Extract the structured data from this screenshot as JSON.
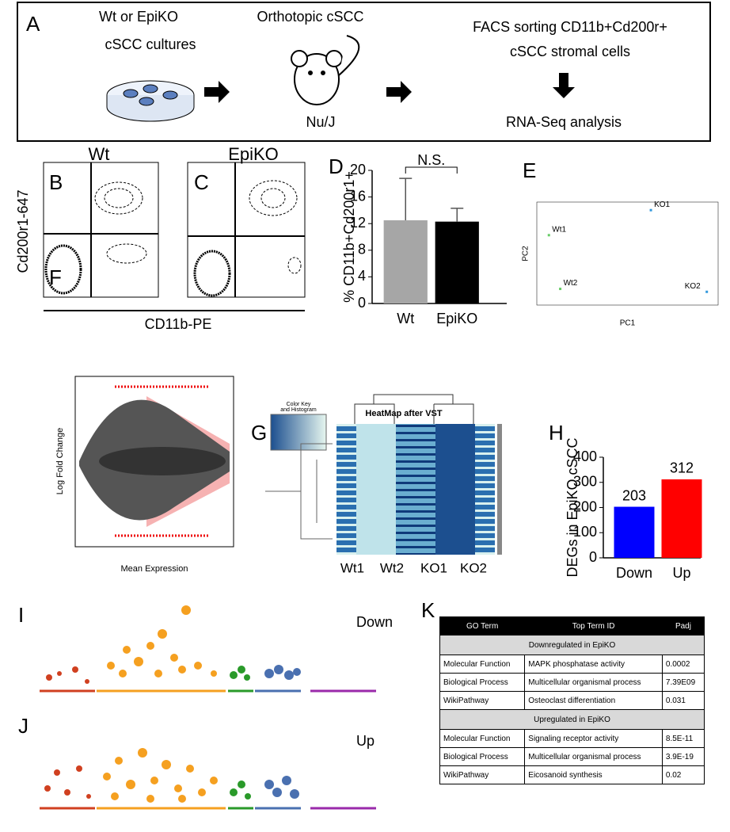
{
  "panel_labels": [
    "A",
    "B",
    "C",
    "D",
    "E",
    "F",
    "G",
    "H",
    "I",
    "J",
    "K"
  ],
  "schematic": {
    "step1": [
      "Wt or EpiKO",
      "cSCC cultures"
    ],
    "step2": "Orthotopic cSCC",
    "mouse": "Nu/J",
    "step3": [
      "FACS sorting CD11b+Cd200r+",
      "cSCC stromal cells"
    ],
    "step4": "RNA-Seq analysis"
  },
  "flow": {
    "titles": [
      "Wt",
      "EpiKO"
    ],
    "ylabel": "Cd200r1-647",
    "xlabel": "CD11b-PE"
  },
  "chart_data": [
    {
      "type": "bar",
      "ylabel": "% CD11b+Cd200r1+",
      "categories": [
        "Wt",
        "EpiKO"
      ],
      "values": [
        12.5,
        12.3
      ],
      "errors": [
        6.3,
        2.0
      ],
      "colors": [
        "#a6a6a6",
        "#000000"
      ],
      "ylim": [
        0,
        20
      ],
      "yticks": [
        0,
        4,
        8,
        12,
        16,
        20
      ],
      "annotation": "N.S."
    },
    {
      "type": "scatter",
      "xlabel": "PC1",
      "ylabel": "PC2",
      "labels": [
        "Wt1",
        "Wt2",
        "KO1",
        "KO2"
      ],
      "x": [
        -10.4,
        -8.9,
        3.1,
        10.5
      ],
      "y": [
        2.5,
        -4.8,
        5.9,
        -5.2
      ],
      "colors": [
        "#66cc66",
        "#66cc66",
        "#3399dd",
        "#3399dd"
      ],
      "xlim": [
        -12,
        12
      ],
      "ylim": [
        -7,
        7
      ]
    },
    {
      "type": "bar",
      "ylabel": "DEGs in EpiKO cSCC",
      "categories": [
        "Down",
        "Up"
      ],
      "values": [
        203,
        312
      ],
      "colors": [
        "#0000ff",
        "#ff0000"
      ],
      "ylim": [
        0,
        400
      ],
      "yticks": [
        0,
        100,
        200,
        300,
        400
      ],
      "data_labels": true
    }
  ],
  "ma_plot": {
    "ylabel": "Log Fold Change",
    "xlabel": "Mean Expression"
  },
  "heatmap": {
    "title": "HeatMap after VST",
    "key": [
      "Color Key",
      "and Histogram"
    ],
    "columns": [
      "Wt1",
      "Wt2",
      "KO1",
      "KO2"
    ]
  },
  "manhattan": [
    "Down",
    "Up"
  ],
  "table": {
    "header": [
      "GO Term",
      "Top Term ID",
      "Padj"
    ],
    "groups": [
      {
        "title": "Downregulated in EpiKO",
        "rows": [
          [
            "Molecular Function",
            "MAPK phosphatase activity",
            "0.0002"
          ],
          [
            "Biological Process",
            "Multicellular organismal process",
            "7.39E09"
          ],
          [
            "WikiPathway",
            "Osteoclast differentiation",
            "0.031"
          ]
        ]
      },
      {
        "title": "Upregulated in EpiKO",
        "rows": [
          [
            "Molecular Function",
            "Signaling receptor activity",
            "8.5E-11"
          ],
          [
            "Biological Process",
            "Multicellular organismal process",
            "3.9E-19"
          ],
          [
            "WikiPathway",
            "Eicosanoid synthesis",
            "0.02"
          ]
        ]
      }
    ]
  }
}
